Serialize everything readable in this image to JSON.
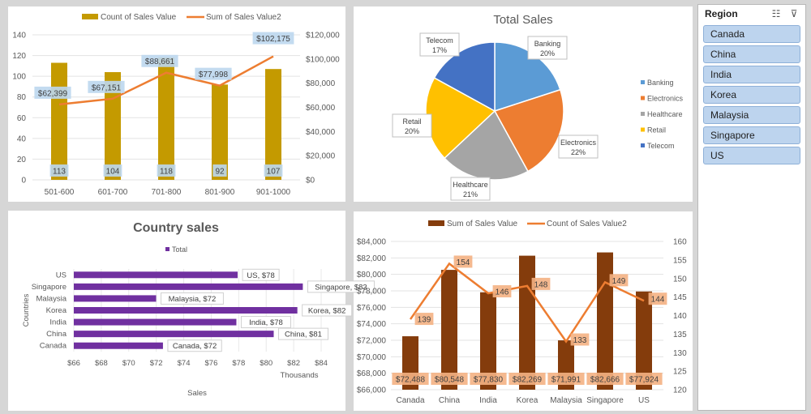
{
  "colors": {
    "gold_bar": "#c49a00",
    "orange_line": "#ed7d31",
    "purple_bar": "#7030a0",
    "brown_bar": "#843c0c",
    "label_orange": "#f4b183",
    "label_blue": "#bdd7ee"
  },
  "slicer": {
    "title": "Region",
    "icons": [
      "multi-select-icon",
      "clear-filter-icon"
    ],
    "items": [
      "Canada",
      "China",
      "India",
      "Korea",
      "Malaysia",
      "Singapore",
      "US"
    ]
  },
  "chart_data": [
    {
      "type": "bar+line",
      "title": "",
      "categories": [
        "501-600",
        "601-700",
        "701-800",
        "801-900",
        "901-1000"
      ],
      "series": [
        {
          "name": "Count of Sales Value",
          "type": "bar",
          "axis": "left",
          "values": [
            113,
            104,
            118,
            92,
            107
          ],
          "labels": [
            "113",
            "104",
            "118",
            "92",
            "107"
          ]
        },
        {
          "name": "Sum of Sales Value2",
          "type": "line",
          "axis": "right",
          "values": [
            62399,
            67151,
            88661,
            77998,
            102175
          ],
          "labels": [
            "$62,399",
            "$67,151",
            "$88,661",
            "$77,998",
            "$102,175"
          ]
        }
      ],
      "ylim_left": [
        0,
        140
      ],
      "yticks_left": [
        "0",
        "20",
        "40",
        "60",
        "80",
        "100",
        "120",
        "140"
      ],
      "ylim_right": [
        0,
        120000
      ],
      "yticks_right": [
        "$0",
        "$20,000",
        "$40,000",
        "$60,000",
        "$80,000",
        "$100,000",
        "$120,000"
      ],
      "legend": "top",
      "grid": true
    },
    {
      "type": "pie",
      "title": "Total Sales",
      "categories": [
        "Banking",
        "Electronics",
        "Healthcare",
        "Retail",
        "Telecom"
      ],
      "values": [
        20,
        22,
        21,
        20,
        17
      ],
      "labels": [
        "20%",
        "22%",
        "21%",
        "20%",
        "17%"
      ],
      "colors": [
        "#5b9bd5",
        "#ed7d31",
        "#a5a5a5",
        "#ffc000",
        "#4472c4"
      ],
      "legend": "right"
    },
    {
      "type": "bar",
      "orientation": "horizontal",
      "title": "Country sales",
      "categories": [
        "Canada",
        "China",
        "India",
        "Korea",
        "Malaysia",
        "Singapore",
        "US"
      ],
      "series": [
        {
          "name": "Total",
          "values": [
            72.488,
            80.548,
            77.83,
            82.269,
            71.991,
            82.666,
            77.924
          ]
        }
      ],
      "labels": [
        "Canada, $72",
        "China, $81",
        "India, $78",
        "Korea, $82",
        "Malaysia, $72",
        "Singapore, $83",
        "US, $78"
      ],
      "xlabel": "Sales",
      "ylabel": "Countries",
      "x_unit": "Thousands",
      "xlim": [
        66,
        84
      ],
      "xticks": [
        "$66",
        "$68",
        "$70",
        "$72",
        "$74",
        "$76",
        "$78",
        "$80",
        "$82",
        "$84"
      ],
      "legend": "top",
      "grid": true
    },
    {
      "type": "bar+line",
      "title": "",
      "categories": [
        "Canada",
        "China",
        "India",
        "Korea",
        "Malaysia",
        "Singapore",
        "US"
      ],
      "series": [
        {
          "name": "Sum of Sales Value",
          "type": "bar",
          "axis": "left",
          "values": [
            72488,
            80548,
            77830,
            82269,
            71991,
            82666,
            77924
          ],
          "labels": [
            "$72,488",
            "$80,548",
            "$77,830",
            "$82,269",
            "$71,991",
            "$82,666",
            "$77,924"
          ]
        },
        {
          "name": "Count of Sales Value2",
          "type": "line",
          "axis": "right",
          "values": [
            139,
            154,
            146,
            148,
            133,
            149,
            144
          ],
          "labels": [
            "139",
            "154",
            "146",
            "148",
            "133",
            "149",
            "144"
          ]
        }
      ],
      "ylim_left": [
        66000,
        84000
      ],
      "yticks_left": [
        "$66,000",
        "$68,000",
        "$70,000",
        "$72,000",
        "$74,000",
        "$76,000",
        "$78,000",
        "$80,000",
        "$82,000",
        "$84,000"
      ],
      "ylim_right": [
        120,
        160
      ],
      "yticks_right": [
        "120",
        "125",
        "130",
        "135",
        "140",
        "145",
        "150",
        "155",
        "160"
      ],
      "legend": "top",
      "grid": true
    }
  ]
}
